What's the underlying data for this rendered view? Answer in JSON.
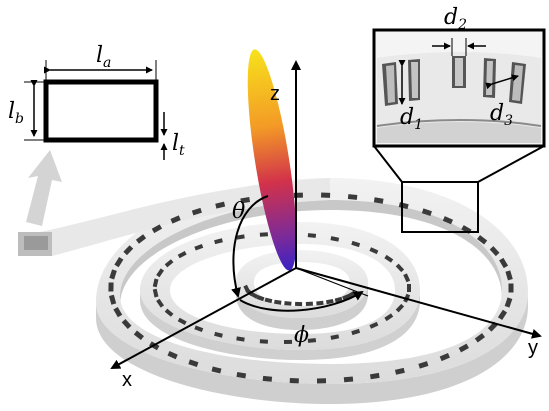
{
  "dimensions": {
    "la": {
      "base": "l",
      "sub": "a"
    },
    "lb": {
      "base": "l",
      "sub": "b"
    },
    "lt": {
      "base": "l",
      "sub": "t"
    },
    "d1": {
      "base": "d",
      "sub": "1"
    },
    "d2": {
      "base": "d",
      "sub": "2"
    },
    "d3": {
      "base": "d",
      "sub": "3"
    }
  },
  "angles": {
    "theta": "θ",
    "phi": "ϕ"
  },
  "axes": {
    "x": "x",
    "y": "y",
    "z": "z"
  },
  "colors": {
    "beam_top": "#f7e21b",
    "beam_mid": "#d2324a",
    "beam_bottom": "#3a23c4",
    "structure": "#e6e6e6",
    "slot": "#3a3a3a",
    "outline": "#000000"
  }
}
